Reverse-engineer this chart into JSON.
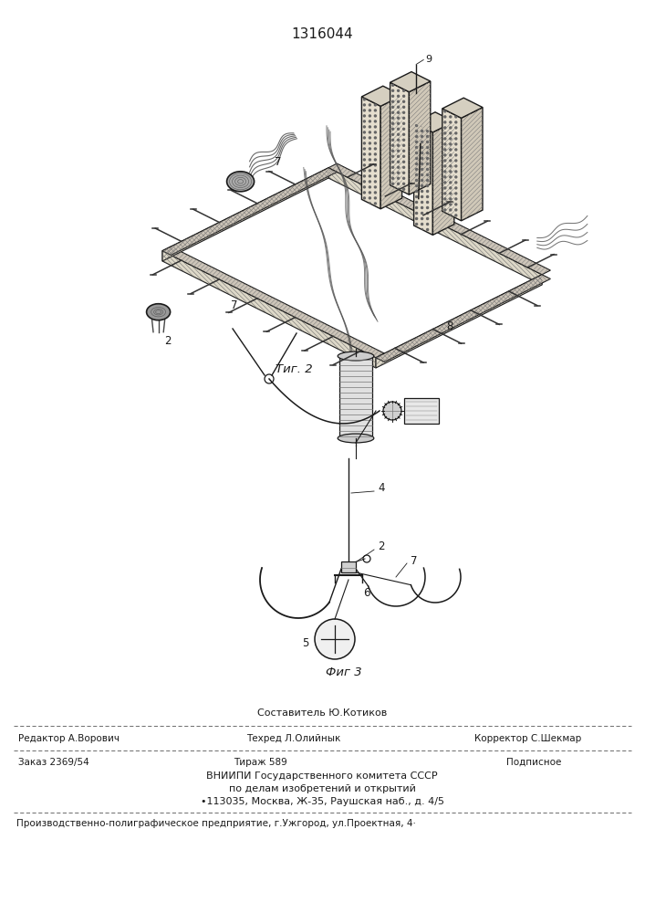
{
  "patent_number": "1316044",
  "fig2_label": "Τиг. 2",
  "fig3_label": "Фиг 3",
  "composer": "Составитель Ю.Котиков",
  "editor": "Редактор А.Ворович",
  "techred": "Техред Л.Олийнык",
  "corrector": "Корректор С.Шекмар",
  "order": "Заказ 2369/54",
  "tirazh": "Тираж 589",
  "podpisnoe": "Подписное",
  "vniip1": "ВНИИПИ Государственного комитета СССР",
  "vniip2": "по делам изобретений и открытий",
  "vniip3": "•113035, Москва, Ж-35, Раушская наб., д. 4/5",
  "footer": "Производственно-полиграфическое предприятие, г.Ужгород, ул.Проектная, 4·",
  "bg_color": "#ffffff",
  "text_color": "#1a1a1a"
}
